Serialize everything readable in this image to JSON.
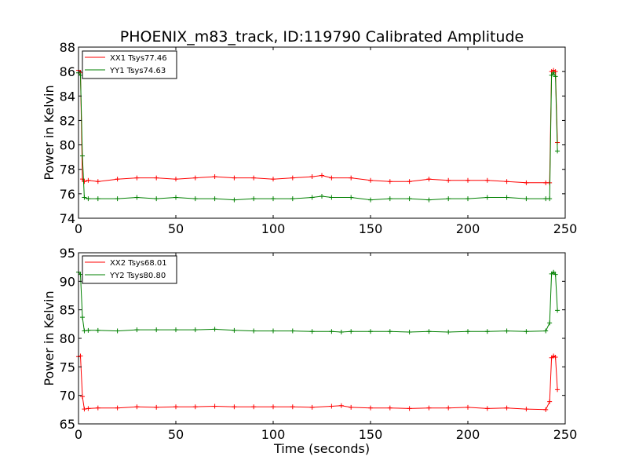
{
  "chart_data": [
    {
      "type": "line",
      "title": "PHOENIX_m83_track, ID:119790 Calibrated Amplitude",
      "xlabel": "",
      "ylabel": "Power in Kelvin",
      "xlim": [
        0,
        250
      ],
      "ylim": [
        74,
        88
      ],
      "xticks": [
        0,
        50,
        100,
        150,
        200,
        250
      ],
      "yticks": [
        74,
        76,
        78,
        80,
        82,
        84,
        86,
        88
      ],
      "legend_position": "top-left",
      "series": [
        {
          "name": "XX1 Tsys77.46",
          "color": "#ff0000",
          "x": [
            0,
            1,
            2,
            3,
            5,
            10,
            20,
            30,
            40,
            50,
            60,
            70,
            80,
            90,
            100,
            110,
            120,
            125,
            130,
            140,
            150,
            160,
            170,
            180,
            190,
            200,
            210,
            220,
            230,
            240,
            242,
            243,
            244,
            245,
            246
          ],
          "y": [
            86.1,
            85.9,
            77.2,
            77.0,
            77.1,
            77.0,
            77.2,
            77.3,
            77.3,
            77.2,
            77.3,
            77.4,
            77.3,
            77.3,
            77.2,
            77.3,
            77.4,
            77.5,
            77.3,
            77.3,
            77.1,
            77.0,
            77.0,
            77.2,
            77.1,
            77.1,
            77.1,
            77.0,
            76.9,
            76.9,
            76.9,
            86.0,
            86.1,
            86.0,
            80.2
          ]
        },
        {
          "name": "YY1 Tsys74.63",
          "color": "#008000",
          "x": [
            0,
            1,
            2,
            3,
            5,
            10,
            20,
            30,
            40,
            50,
            60,
            70,
            80,
            90,
            100,
            110,
            120,
            125,
            130,
            140,
            150,
            160,
            170,
            180,
            190,
            200,
            210,
            220,
            230,
            240,
            242,
            243,
            244,
            245,
            246
          ],
          "y": [
            85.9,
            85.7,
            79.1,
            75.7,
            75.6,
            75.6,
            75.6,
            75.7,
            75.6,
            75.7,
            75.6,
            75.6,
            75.5,
            75.6,
            75.6,
            75.6,
            75.7,
            75.8,
            75.7,
            75.7,
            75.5,
            75.6,
            75.6,
            75.5,
            75.6,
            75.6,
            75.7,
            75.7,
            75.6,
            75.6,
            75.6,
            85.7,
            85.9,
            85.6,
            79.5
          ]
        }
      ]
    },
    {
      "type": "line",
      "title": "",
      "xlabel": "Time (seconds)",
      "ylabel": "Power in Kelvin",
      "xlim": [
        0,
        250
      ],
      "ylim": [
        65,
        95
      ],
      "xticks": [
        0,
        50,
        100,
        150,
        200,
        250
      ],
      "yticks": [
        65,
        70,
        75,
        80,
        85,
        90,
        95
      ],
      "legend_position": "top-left",
      "series": [
        {
          "name": "XX2 Tsys68.01",
          "color": "#ff0000",
          "x": [
            0,
            1,
            2,
            3,
            5,
            10,
            20,
            30,
            40,
            50,
            60,
            70,
            80,
            90,
            100,
            110,
            120,
            130,
            135,
            140,
            150,
            160,
            170,
            180,
            190,
            200,
            210,
            220,
            230,
            240,
            242,
            243,
            244,
            245,
            246
          ],
          "y": [
            76.8,
            76.9,
            69.8,
            67.6,
            67.7,
            67.8,
            67.8,
            68.0,
            67.9,
            68.0,
            68.0,
            68.1,
            68.0,
            68.0,
            68.0,
            68.0,
            67.9,
            68.1,
            68.2,
            67.9,
            67.8,
            67.8,
            67.7,
            67.8,
            67.8,
            67.9,
            67.7,
            67.8,
            67.6,
            67.5,
            68.9,
            76.6,
            76.9,
            76.7,
            71.0
          ]
        },
        {
          "name": "YY2 Tsys80.80",
          "color": "#008000",
          "x": [
            0,
            1,
            2,
            3,
            5,
            10,
            20,
            30,
            40,
            50,
            60,
            70,
            80,
            90,
            100,
            110,
            120,
            130,
            135,
            140,
            150,
            160,
            170,
            180,
            190,
            200,
            210,
            220,
            230,
            240,
            242,
            243,
            244,
            245,
            246
          ],
          "y": [
            91.6,
            91.2,
            83.7,
            81.3,
            81.4,
            81.4,
            81.3,
            81.5,
            81.5,
            81.5,
            81.5,
            81.6,
            81.4,
            81.3,
            81.3,
            81.3,
            81.2,
            81.2,
            81.1,
            81.2,
            81.2,
            81.2,
            81.1,
            81.2,
            81.1,
            81.2,
            81.2,
            81.3,
            81.2,
            81.3,
            82.7,
            91.3,
            91.6,
            91.2,
            84.9
          ]
        }
      ]
    }
  ]
}
